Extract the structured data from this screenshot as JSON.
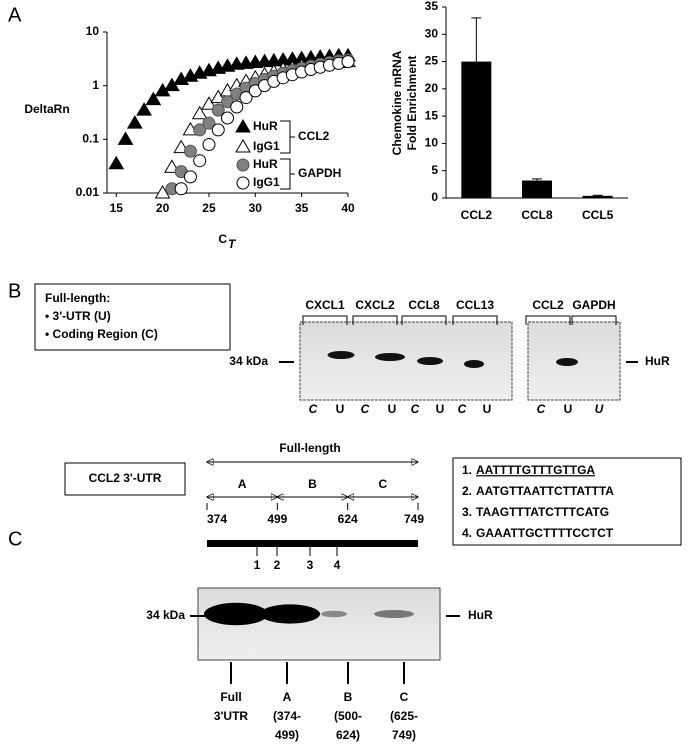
{
  "panel_labels": [
    "A",
    "B",
    "C"
  ],
  "chart_data": [
    {
      "type": "scatter",
      "y_label": "DeltaRn",
      "x_label": "C",
      "x_label_subscript": "T",
      "y_scale": "log",
      "xlim": [
        14,
        40
      ],
      "xticks": [
        15,
        20,
        25,
        30,
        35,
        40
      ],
      "ylim": [
        0.01,
        10
      ],
      "yticks": [
        0.01,
        0.1,
        1,
        10
      ],
      "series": [
        {
          "name": "HuR",
          "group": "CCL2",
          "marker": "triangle",
          "color": "#000000",
          "fill": "#000000",
          "x": [
            15,
            16,
            17,
            18,
            19,
            20,
            21,
            22,
            23,
            24,
            25,
            26,
            27,
            28,
            29,
            30,
            31,
            32,
            33,
            34,
            35,
            36,
            37,
            38,
            39,
            40
          ],
          "values": [
            0.035,
            0.1,
            0.2,
            0.35,
            0.55,
            0.8,
            1.0,
            1.3,
            1.5,
            1.7,
            1.9,
            2.1,
            2.3,
            2.5,
            2.6,
            2.7,
            2.8,
            2.9,
            3.0,
            3.1,
            3.2,
            3.3,
            3.4,
            3.5,
            3.6,
            3.6
          ]
        },
        {
          "name": "IgG1",
          "group": "CCL2",
          "marker": "triangle",
          "color": "#000000",
          "fill": "#ffffff",
          "x": [
            20,
            21,
            22,
            23,
            24,
            25,
            26,
            27,
            28,
            29,
            30,
            31,
            32,
            33,
            34,
            35,
            36,
            37,
            38,
            39,
            40
          ],
          "values": [
            0.01,
            0.03,
            0.07,
            0.15,
            0.3,
            0.45,
            0.6,
            0.8,
            1.0,
            1.2,
            1.4,
            1.6,
            1.8,
            2.0,
            2.1,
            2.3,
            2.4,
            2.5,
            2.6,
            2.7,
            2.8
          ]
        },
        {
          "name": "HuR",
          "group": "GAPDH",
          "marker": "circle",
          "color": "#555555",
          "fill": "#808080",
          "x": [
            21,
            22,
            23,
            24,
            25,
            26,
            27,
            28,
            29,
            30,
            31,
            32,
            33,
            34,
            35,
            36,
            37,
            38,
            39,
            40
          ],
          "values": [
            0.012,
            0.025,
            0.06,
            0.15,
            0.2,
            0.35,
            0.5,
            0.7,
            0.9,
            1.1,
            1.3,
            1.5,
            1.7,
            1.9,
            2.1,
            2.3,
            2.5,
            2.7,
            2.9,
            3.0
          ]
        },
        {
          "name": "IgG1",
          "group": "GAPDH",
          "marker": "circle",
          "color": "#000000",
          "fill": "#ffffff",
          "x": [
            22,
            23,
            24,
            25,
            26,
            27,
            28,
            29,
            30,
            31,
            32,
            33,
            34,
            35,
            36,
            37,
            38,
            39,
            40
          ],
          "values": [
            0.012,
            0.02,
            0.04,
            0.08,
            0.15,
            0.25,
            0.4,
            0.6,
            0.8,
            1.0,
            1.2,
            1.4,
            1.6,
            1.8,
            2.0,
            2.2,
            2.4,
            2.6,
            2.8
          ]
        }
      ]
    },
    {
      "type": "bar",
      "y_label": [
        "Chemokine mRNA",
        "Fold Enrichment"
      ],
      "categories": [
        "CCL2",
        "CCL8",
        "CCL5"
      ],
      "values": [
        25,
        3.2,
        0.4
      ],
      "errors": [
        8,
        0.3,
        0.1
      ],
      "color": "#000000",
      "ylim": [
        0,
        35
      ],
      "yticks": [
        0,
        5,
        10,
        15,
        20,
        25,
        30,
        35
      ]
    }
  ],
  "panel_b": {
    "box": [
      "Full-length:",
      "• 3'-UTR (U)",
      "• Coding Region (C)"
    ],
    "blot_groups": [
      [
        "CXCL1",
        "CXCL2",
        "CCL8",
        "CCL13"
      ],
      [
        "CCL2",
        "GAPDH"
      ]
    ],
    "marker": "34 kDa",
    "band": "HuR",
    "lanes": [
      [
        "C",
        "U",
        "C",
        "U",
        "C",
        "U",
        "C",
        "U"
      ],
      [
        "C",
        "U",
        "U"
      ]
    ]
  },
  "panel_c": {
    "box": "CCL2 3'-UTR",
    "full_label": "Full-length",
    "fragments": [
      "A",
      "B",
      "C"
    ],
    "positions": [
      374,
      499,
      624,
      749
    ],
    "sites": [
      1,
      2,
      3,
      4
    ],
    "sequences": [
      {
        "label": "1.",
        "sequence": "AATTTTGTTTGTTGA"
      },
      {
        "label": "2.",
        "sequence": "AATGTTAATTCTTATTTA"
      },
      {
        "label": "3.",
        "sequence": "TAAGTTTATCTTTCATG"
      },
      {
        "label": "4.",
        "sequence": "GAAATTGCTTTTCCTCT"
      }
    ],
    "marker": "34 kDa",
    "band": "HuR",
    "lanes": [
      [
        "Full",
        "3'UTR"
      ],
      [
        "A",
        "(374-",
        "499)"
      ],
      [
        "B",
        "(500-",
        "624)"
      ],
      [
        "C",
        "(625-",
        "749)"
      ]
    ]
  }
}
